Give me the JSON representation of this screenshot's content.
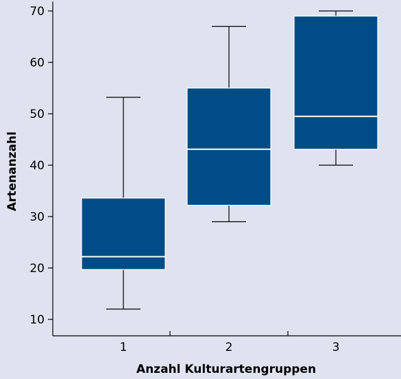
{
  "chart_data": {
    "type": "boxplot",
    "title": "",
    "xlabel": "Anzahl Kulturartengruppen",
    "ylabel": "Artenanzahl",
    "categories": [
      "1",
      "2",
      "3"
    ],
    "ylim": [
      7,
      71
    ],
    "yticks": [
      10,
      20,
      30,
      40,
      50,
      60,
      70
    ],
    "grid": false,
    "legend": "none",
    "box_color": "#004c86",
    "median_color": "#ffffff",
    "boxes": [
      {
        "category": "1",
        "whisker_low": 12,
        "q1": 19.7,
        "median": 22.2,
        "q3": 33.6,
        "whisker_high": 53.2
      },
      {
        "category": "2",
        "whisker_low": 29,
        "q1": 32.2,
        "median": 43.1,
        "q3": 55,
        "whisker_high": 67
      },
      {
        "category": "3",
        "whisker_low": 40,
        "q1": 43.1,
        "median": 49.5,
        "q3": 69,
        "whisker_high": 70
      }
    ]
  }
}
